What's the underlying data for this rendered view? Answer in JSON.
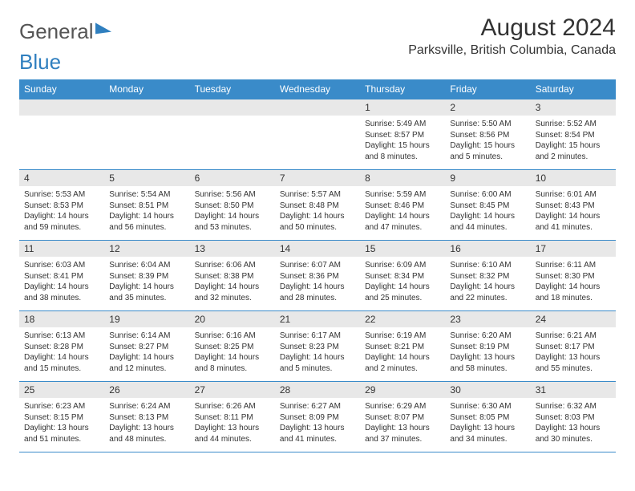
{
  "brand": {
    "part1": "General",
    "part2": "Blue"
  },
  "title": "August 2024",
  "location": "Parksville, British Columbia, Canada",
  "colors": {
    "header_bg": "#3a8bc9",
    "header_fg": "#ffffff",
    "daynum_bg": "#e8e8e8",
    "border": "#3a8bc9"
  },
  "day_headers": [
    "Sunday",
    "Monday",
    "Tuesday",
    "Wednesday",
    "Thursday",
    "Friday",
    "Saturday"
  ],
  "weeks": [
    [
      null,
      null,
      null,
      null,
      {
        "n": "1",
        "sr": "5:49 AM",
        "ss": "8:57 PM",
        "dl": "15 hours and 8 minutes."
      },
      {
        "n": "2",
        "sr": "5:50 AM",
        "ss": "8:56 PM",
        "dl": "15 hours and 5 minutes."
      },
      {
        "n": "3",
        "sr": "5:52 AM",
        "ss": "8:54 PM",
        "dl": "15 hours and 2 minutes."
      }
    ],
    [
      {
        "n": "4",
        "sr": "5:53 AM",
        "ss": "8:53 PM",
        "dl": "14 hours and 59 minutes."
      },
      {
        "n": "5",
        "sr": "5:54 AM",
        "ss": "8:51 PM",
        "dl": "14 hours and 56 minutes."
      },
      {
        "n": "6",
        "sr": "5:56 AM",
        "ss": "8:50 PM",
        "dl": "14 hours and 53 minutes."
      },
      {
        "n": "7",
        "sr": "5:57 AM",
        "ss": "8:48 PM",
        "dl": "14 hours and 50 minutes."
      },
      {
        "n": "8",
        "sr": "5:59 AM",
        "ss": "8:46 PM",
        "dl": "14 hours and 47 minutes."
      },
      {
        "n": "9",
        "sr": "6:00 AM",
        "ss": "8:45 PM",
        "dl": "14 hours and 44 minutes."
      },
      {
        "n": "10",
        "sr": "6:01 AM",
        "ss": "8:43 PM",
        "dl": "14 hours and 41 minutes."
      }
    ],
    [
      {
        "n": "11",
        "sr": "6:03 AM",
        "ss": "8:41 PM",
        "dl": "14 hours and 38 minutes."
      },
      {
        "n": "12",
        "sr": "6:04 AM",
        "ss": "8:39 PM",
        "dl": "14 hours and 35 minutes."
      },
      {
        "n": "13",
        "sr": "6:06 AM",
        "ss": "8:38 PM",
        "dl": "14 hours and 32 minutes."
      },
      {
        "n": "14",
        "sr": "6:07 AM",
        "ss": "8:36 PM",
        "dl": "14 hours and 28 minutes."
      },
      {
        "n": "15",
        "sr": "6:09 AM",
        "ss": "8:34 PM",
        "dl": "14 hours and 25 minutes."
      },
      {
        "n": "16",
        "sr": "6:10 AM",
        "ss": "8:32 PM",
        "dl": "14 hours and 22 minutes."
      },
      {
        "n": "17",
        "sr": "6:11 AM",
        "ss": "8:30 PM",
        "dl": "14 hours and 18 minutes."
      }
    ],
    [
      {
        "n": "18",
        "sr": "6:13 AM",
        "ss": "8:28 PM",
        "dl": "14 hours and 15 minutes."
      },
      {
        "n": "19",
        "sr": "6:14 AM",
        "ss": "8:27 PM",
        "dl": "14 hours and 12 minutes."
      },
      {
        "n": "20",
        "sr": "6:16 AM",
        "ss": "8:25 PM",
        "dl": "14 hours and 8 minutes."
      },
      {
        "n": "21",
        "sr": "6:17 AM",
        "ss": "8:23 PM",
        "dl": "14 hours and 5 minutes."
      },
      {
        "n": "22",
        "sr": "6:19 AM",
        "ss": "8:21 PM",
        "dl": "14 hours and 2 minutes."
      },
      {
        "n": "23",
        "sr": "6:20 AM",
        "ss": "8:19 PM",
        "dl": "13 hours and 58 minutes."
      },
      {
        "n": "24",
        "sr": "6:21 AM",
        "ss": "8:17 PM",
        "dl": "13 hours and 55 minutes."
      }
    ],
    [
      {
        "n": "25",
        "sr": "6:23 AM",
        "ss": "8:15 PM",
        "dl": "13 hours and 51 minutes."
      },
      {
        "n": "26",
        "sr": "6:24 AM",
        "ss": "8:13 PM",
        "dl": "13 hours and 48 minutes."
      },
      {
        "n": "27",
        "sr": "6:26 AM",
        "ss": "8:11 PM",
        "dl": "13 hours and 44 minutes."
      },
      {
        "n": "28",
        "sr": "6:27 AM",
        "ss": "8:09 PM",
        "dl": "13 hours and 41 minutes."
      },
      {
        "n": "29",
        "sr": "6:29 AM",
        "ss": "8:07 PM",
        "dl": "13 hours and 37 minutes."
      },
      {
        "n": "30",
        "sr": "6:30 AM",
        "ss": "8:05 PM",
        "dl": "13 hours and 34 minutes."
      },
      {
        "n": "31",
        "sr": "6:32 AM",
        "ss": "8:03 PM",
        "dl": "13 hours and 30 minutes."
      }
    ]
  ],
  "labels": {
    "sunrise": "Sunrise: ",
    "sunset": "Sunset: ",
    "daylight": "Daylight: "
  }
}
